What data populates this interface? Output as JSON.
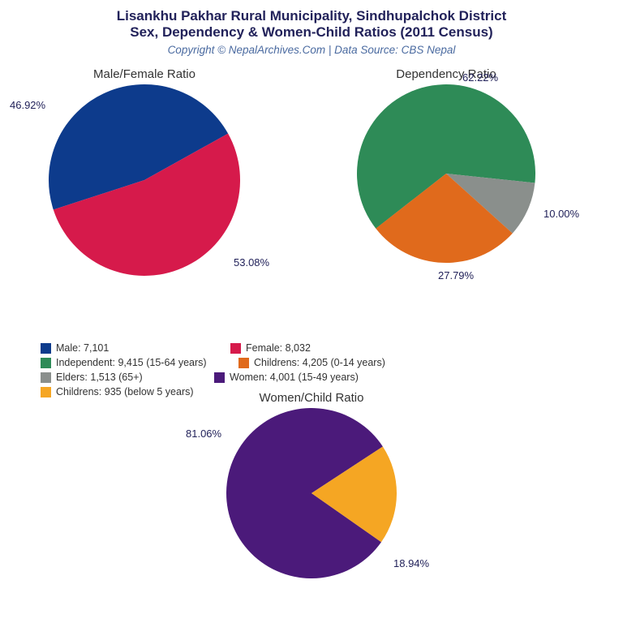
{
  "title_line1": "Lisankhu Pakhar Rural Municipality, Sindhupalchok District",
  "title_line2": "Sex, Dependency & Women-Child Ratios (2011 Census)",
  "subtitle": "Copyright © NepalArchives.Com | Data Source: CBS Nepal",
  "background_color": "#ffffff",
  "title_color": "#22225a",
  "subtitle_color": "#4a6aa0",
  "label_color": "#22225a",
  "chart_title_color": "#333333",
  "legend_text_color": "#333333",
  "title_fontsize": 17,
  "subtitle_fontsize": 13.5,
  "chart_title_fontsize": 15,
  "pct_label_fontsize": 13,
  "legend_fontsize": 12.5,
  "colors": {
    "male": "#0d3b8c",
    "female": "#d61a4b",
    "independent": "#2e8b57",
    "childrens": "#e06a1c",
    "elders": "#8a8f8c",
    "women": "#4b1a7a",
    "childrens_below5": "#f5a623"
  },
  "chart1": {
    "type": "pie",
    "title": "Male/Female Ratio",
    "diameter": 236,
    "slices": [
      {
        "label": "Male",
        "value": 46.92,
        "pct_text": "46.92%",
        "color_key": "male"
      },
      {
        "label": "Female",
        "value": 53.08,
        "pct_text": "53.08%",
        "color_key": "female"
      }
    ]
  },
  "chart2": {
    "type": "pie",
    "title": "Dependency Ratio",
    "diameter": 220,
    "slices": [
      {
        "label": "Independent",
        "value": 62.22,
        "pct_text": "62.22%",
        "color_key": "independent"
      },
      {
        "label": "Childrens",
        "value": 27.79,
        "pct_text": "27.79%",
        "color_key": "childrens"
      },
      {
        "label": "Elders",
        "value": 10.0,
        "pct_text": "10.00%",
        "color_key": "elders"
      }
    ]
  },
  "chart3": {
    "type": "pie",
    "title": "Women/Child Ratio",
    "diameter": 210,
    "slices": [
      {
        "label": "Women",
        "value": 81.06,
        "pct_text": "81.06%",
        "color_key": "women"
      },
      {
        "label": "Childrens below5",
        "value": 18.94,
        "pct_text": "18.94%",
        "color_key": "childrens_below5"
      }
    ]
  },
  "legend": [
    {
      "color_key": "male",
      "text": "Male: 7,101"
    },
    {
      "color_key": "female",
      "text": "Female: 8,032"
    },
    {
      "color_key": "independent",
      "text": "Independent: 9,415 (15-64 years)"
    },
    {
      "color_key": "childrens",
      "text": "Childrens: 4,205 (0-14 years)"
    },
    {
      "color_key": "elders",
      "text": "Elders: 1,513 (65+)"
    },
    {
      "color_key": "women",
      "text": "Women: 4,001 (15-49 years)"
    },
    {
      "color_key": "childrens_below5",
      "text": "Childrens: 935 (below 5 years)"
    }
  ]
}
